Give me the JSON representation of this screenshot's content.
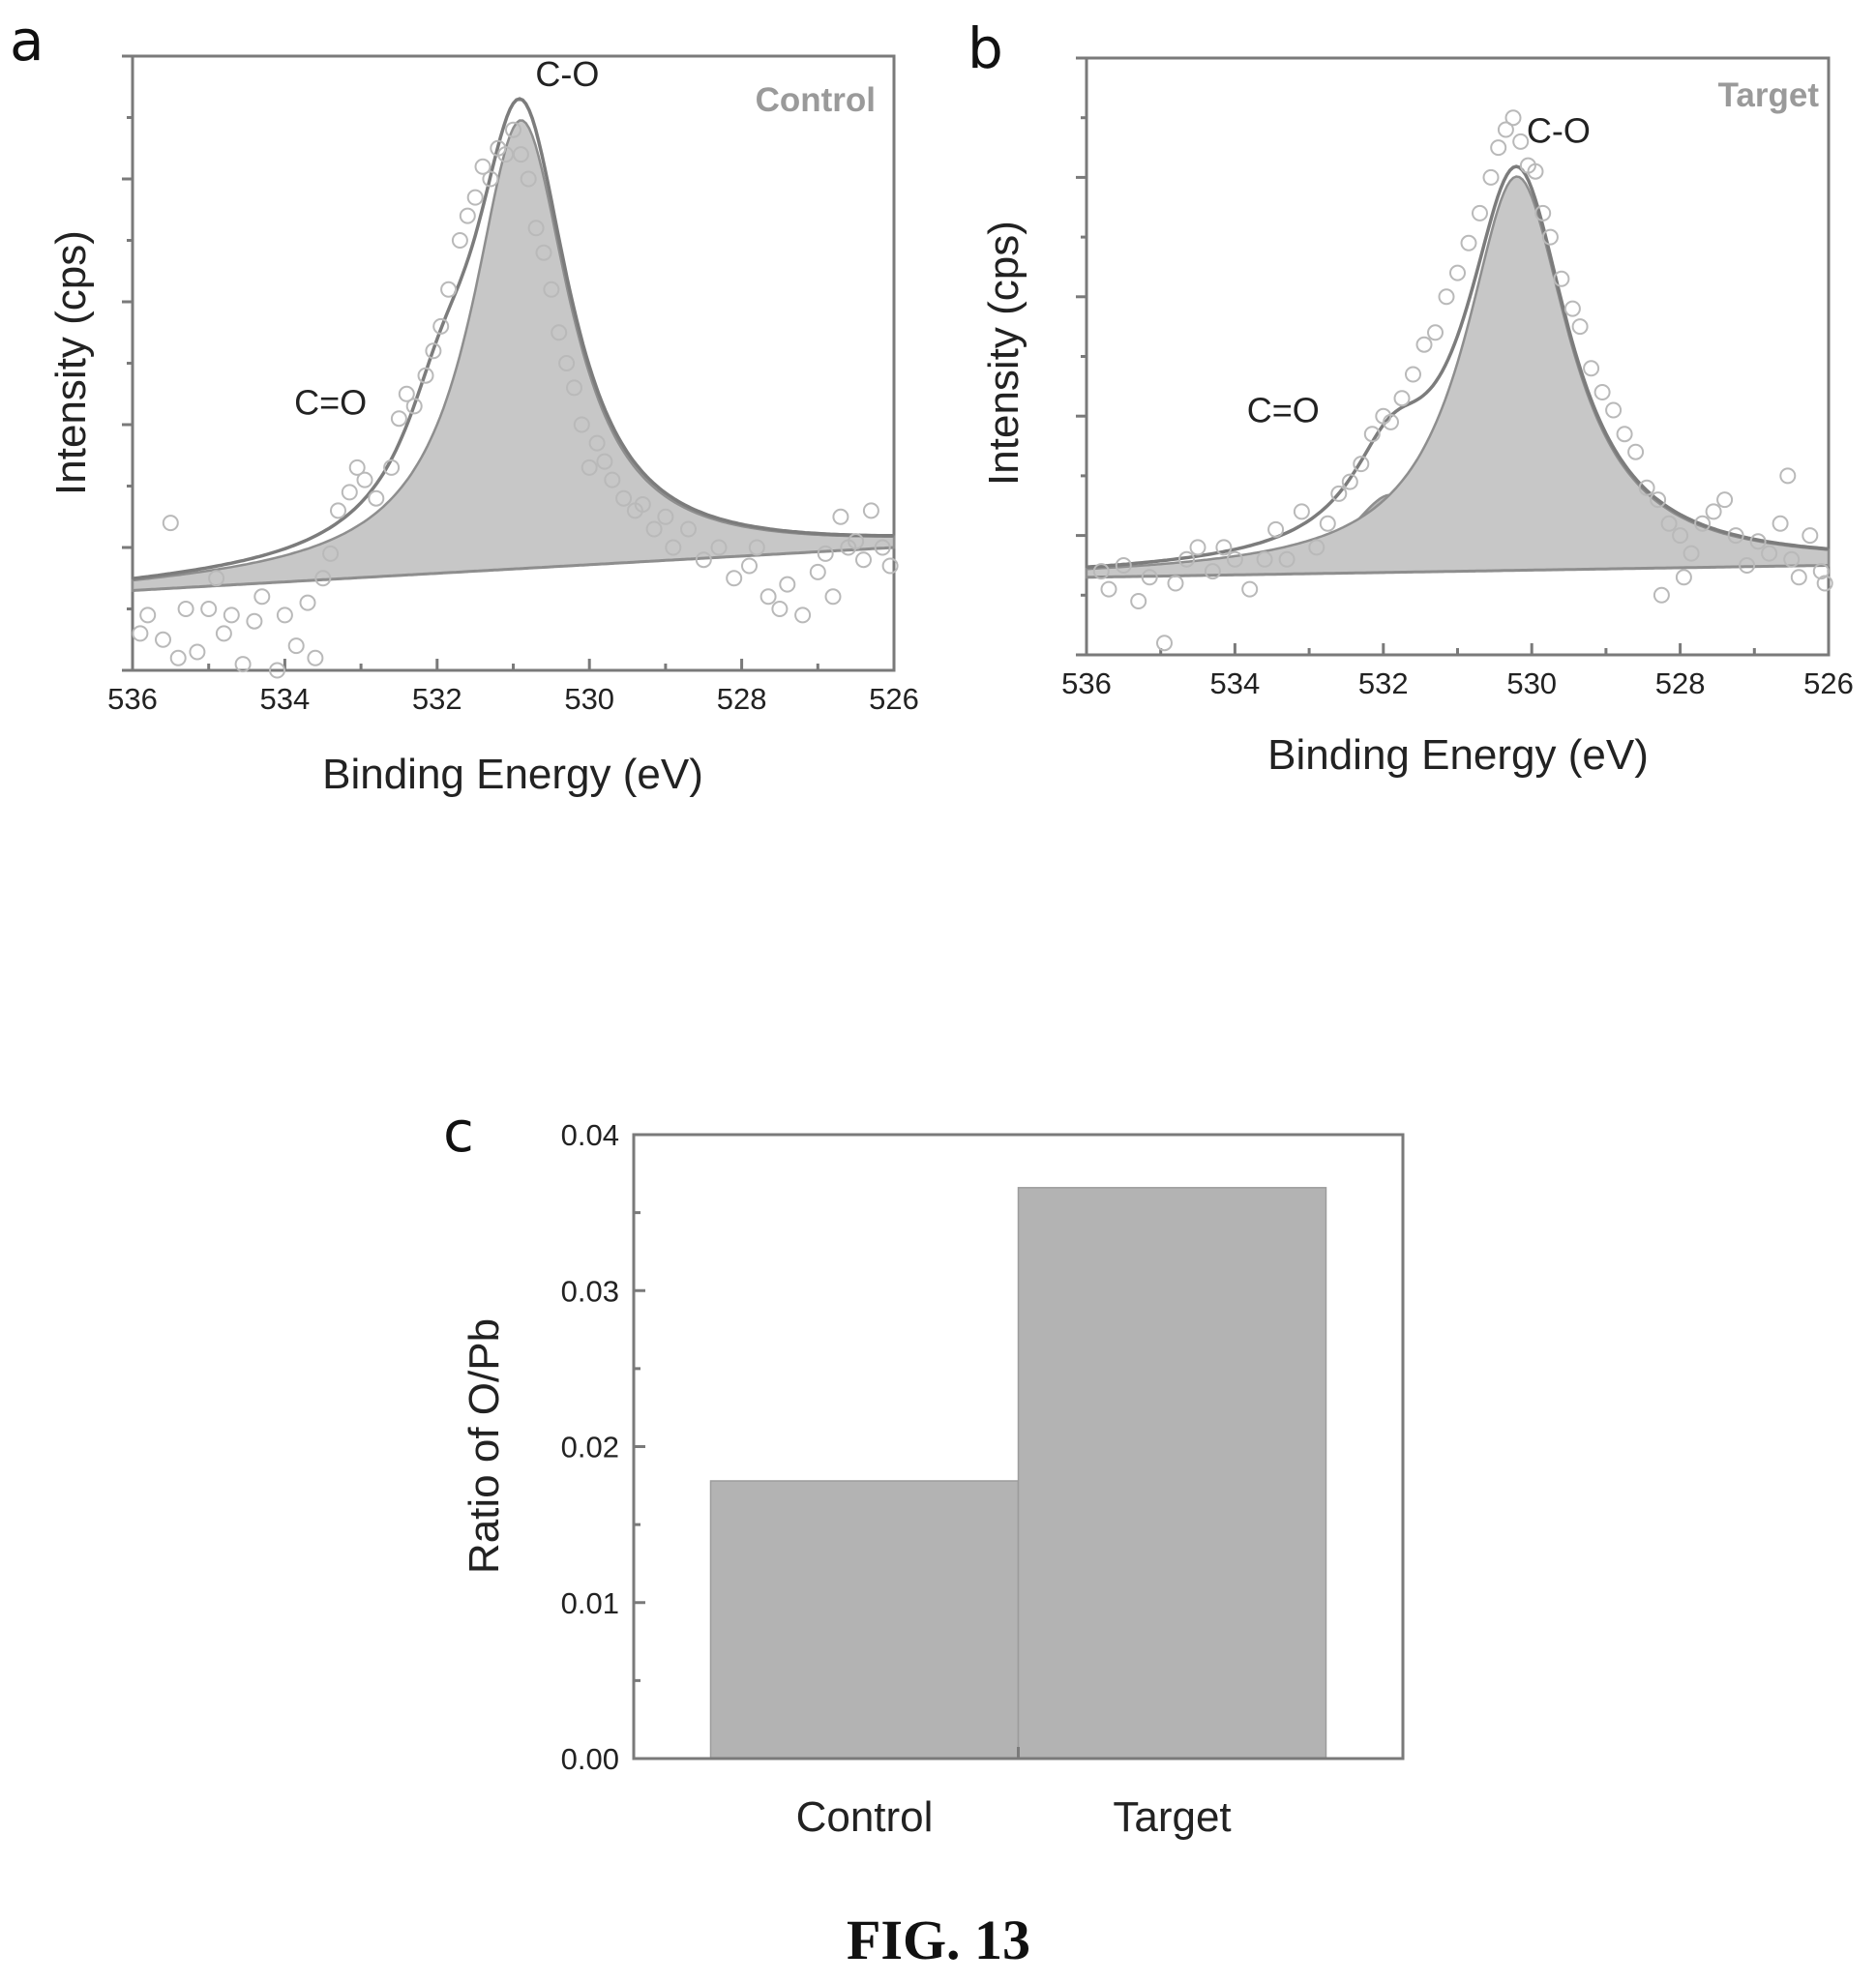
{
  "figure_caption": "FIG. 13",
  "chart_data": [
    {
      "panel": "a",
      "type": "scatter",
      "sample_label": "Control",
      "xlabel": "Binding Energy (eV)",
      "ylabel": "Intensity (cps)",
      "xlim": [
        536,
        526
      ],
      "x_ticks": [
        "536",
        "534",
        "532",
        "530",
        "528",
        "526"
      ],
      "y_ticks_labeled": false,
      "grid": false,
      "baseline": {
        "start": 0.13,
        "end": 0.2
      },
      "peaks": [
        {
          "label": "C-O",
          "center": 530.9,
          "height": 0.73,
          "fwhm": 1.55
        },
        {
          "label": "C=O",
          "center": 531.95,
          "height": 0.14,
          "fwhm": 1.2
        }
      ],
      "points": [
        [
          535.9,
          0.06
        ],
        [
          535.8,
          0.09
        ],
        [
          535.6,
          0.05
        ],
        [
          535.5,
          0.24
        ],
        [
          535.4,
          0.02
        ],
        [
          535.3,
          0.1
        ],
        [
          535.15,
          0.03
        ],
        [
          535.0,
          0.1
        ],
        [
          534.9,
          0.15
        ],
        [
          534.8,
          0.06
        ],
        [
          534.7,
          0.09
        ],
        [
          534.55,
          0.01
        ],
        [
          534.4,
          0.08
        ],
        [
          534.3,
          0.12
        ],
        [
          534.1,
          0.0
        ],
        [
          534.0,
          0.09
        ],
        [
          533.85,
          0.04
        ],
        [
          533.7,
          0.11
        ],
        [
          533.6,
          0.02
        ],
        [
          533.5,
          0.15
        ],
        [
          533.4,
          0.19
        ],
        [
          533.3,
          0.26
        ],
        [
          533.15,
          0.29
        ],
        [
          533.05,
          0.33
        ],
        [
          532.95,
          0.31
        ],
        [
          532.8,
          0.28
        ],
        [
          532.6,
          0.33
        ],
        [
          532.5,
          0.41
        ],
        [
          532.4,
          0.45
        ],
        [
          532.3,
          0.43
        ],
        [
          532.15,
          0.48
        ],
        [
          532.05,
          0.52
        ],
        [
          531.95,
          0.56
        ],
        [
          531.85,
          0.62
        ],
        [
          531.7,
          0.7
        ],
        [
          531.6,
          0.74
        ],
        [
          531.5,
          0.77
        ],
        [
          531.4,
          0.82
        ],
        [
          531.3,
          0.8
        ],
        [
          531.2,
          0.85
        ],
        [
          531.1,
          0.84
        ],
        [
          531.0,
          0.88
        ],
        [
          530.9,
          0.84
        ],
        [
          530.8,
          0.8
        ],
        [
          530.7,
          0.72
        ],
        [
          530.6,
          0.68
        ],
        [
          530.5,
          0.62
        ],
        [
          530.4,
          0.55
        ],
        [
          530.3,
          0.5
        ],
        [
          530.2,
          0.46
        ],
        [
          530.1,
          0.4
        ],
        [
          530.0,
          0.33
        ],
        [
          529.9,
          0.37
        ],
        [
          529.8,
          0.34
        ],
        [
          529.7,
          0.31
        ],
        [
          529.55,
          0.28
        ],
        [
          529.4,
          0.26
        ],
        [
          529.3,
          0.27
        ],
        [
          529.15,
          0.23
        ],
        [
          529.0,
          0.25
        ],
        [
          528.9,
          0.2
        ],
        [
          528.7,
          0.23
        ],
        [
          528.5,
          0.18
        ],
        [
          528.3,
          0.2
        ],
        [
          528.1,
          0.15
        ],
        [
          527.9,
          0.17
        ],
        [
          527.8,
          0.2
        ],
        [
          527.65,
          0.12
        ],
        [
          527.5,
          0.1
        ],
        [
          527.4,
          0.14
        ],
        [
          527.2,
          0.09
        ],
        [
          527.0,
          0.16
        ],
        [
          526.9,
          0.19
        ],
        [
          526.8,
          0.12
        ],
        [
          526.7,
          0.25
        ],
        [
          526.6,
          0.2
        ],
        [
          526.5,
          0.21
        ],
        [
          526.4,
          0.18
        ],
        [
          526.3,
          0.26
        ],
        [
          526.15,
          0.2
        ],
        [
          526.05,
          0.17
        ]
      ]
    },
    {
      "panel": "b",
      "type": "scatter",
      "sample_label": "Target",
      "xlabel": "Binding Energy (eV)",
      "ylabel": "Intensity (cps)",
      "xlim": [
        536,
        526
      ],
      "x_ticks": [
        "536",
        "534",
        "532",
        "530",
        "528",
        "526"
      ],
      "y_ticks_labeled": false,
      "grid": false,
      "baseline": {
        "start": 0.13,
        "end": 0.15
      },
      "peaks": [
        {
          "label": "C-O",
          "center": 530.2,
          "height": 0.66,
          "fwhm": 1.7
        },
        {
          "label": "C=O",
          "center": 531.9,
          "height": 0.13,
          "fwhm": 1.3
        }
      ],
      "points": [
        [
          535.8,
          0.14
        ],
        [
          535.7,
          0.11
        ],
        [
          535.5,
          0.15
        ],
        [
          535.3,
          0.09
        ],
        [
          535.15,
          0.13
        ],
        [
          534.95,
          0.02
        ],
        [
          534.8,
          0.12
        ],
        [
          534.65,
          0.16
        ],
        [
          534.5,
          0.18
        ],
        [
          534.3,
          0.14
        ],
        [
          534.15,
          0.18
        ],
        [
          534.0,
          0.16
        ],
        [
          533.8,
          0.11
        ],
        [
          533.6,
          0.16
        ],
        [
          533.45,
          0.21
        ],
        [
          533.3,
          0.16
        ],
        [
          533.1,
          0.24
        ],
        [
          532.9,
          0.18
        ],
        [
          532.75,
          0.22
        ],
        [
          532.6,
          0.27
        ],
        [
          532.45,
          0.29
        ],
        [
          532.3,
          0.32
        ],
        [
          532.15,
          0.37
        ],
        [
          532.0,
          0.4
        ],
        [
          531.9,
          0.39
        ],
        [
          531.75,
          0.43
        ],
        [
          531.6,
          0.47
        ],
        [
          531.45,
          0.52
        ],
        [
          531.3,
          0.54
        ],
        [
          531.15,
          0.6
        ],
        [
          531.0,
          0.64
        ],
        [
          530.85,
          0.69
        ],
        [
          530.7,
          0.74
        ],
        [
          530.55,
          0.8
        ],
        [
          530.45,
          0.85
        ],
        [
          530.35,
          0.88
        ],
        [
          530.25,
          0.9
        ],
        [
          530.15,
          0.86
        ],
        [
          530.05,
          0.82
        ],
        [
          529.95,
          0.81
        ],
        [
          529.85,
          0.74
        ],
        [
          529.75,
          0.7
        ],
        [
          529.6,
          0.63
        ],
        [
          529.45,
          0.58
        ],
        [
          529.35,
          0.55
        ],
        [
          529.2,
          0.48
        ],
        [
          529.05,
          0.44
        ],
        [
          528.9,
          0.41
        ],
        [
          528.75,
          0.37
        ],
        [
          528.6,
          0.34
        ],
        [
          528.45,
          0.28
        ],
        [
          528.3,
          0.26
        ],
        [
          528.15,
          0.22
        ],
        [
          528.0,
          0.2
        ],
        [
          527.85,
          0.17
        ],
        [
          527.7,
          0.22
        ],
        [
          527.55,
          0.24
        ],
        [
          527.4,
          0.26
        ],
        [
          527.25,
          0.2
        ],
        [
          527.1,
          0.15
        ],
        [
          526.95,
          0.19
        ],
        [
          526.8,
          0.17
        ],
        [
          526.65,
          0.22
        ],
        [
          526.5,
          0.16
        ],
        [
          526.4,
          0.13
        ],
        [
          526.25,
          0.2
        ],
        [
          526.1,
          0.14
        ],
        [
          526.05,
          0.12
        ],
        [
          528.25,
          0.1
        ],
        [
          527.95,
          0.13
        ],
        [
          526.55,
          0.3
        ]
      ]
    },
    {
      "panel": "c",
      "type": "bar",
      "xlabel": "",
      "ylabel": "Ratio of O/Pb",
      "ylim": [
        0,
        0.04
      ],
      "y_ticks": [
        "0.00",
        "0.01",
        "0.02",
        "0.03",
        "0.04"
      ],
      "categories": [
        "Control",
        "Target"
      ],
      "values": [
        0.0178,
        0.0366
      ],
      "grid": false
    }
  ],
  "colors": {
    "axis": "#7a7a7a",
    "bar_fill": "#b3b3b3",
    "peak_fill": "#c7c7c7",
    "marker": "#b9b9b9",
    "sample_label": "#9a9a9a"
  }
}
